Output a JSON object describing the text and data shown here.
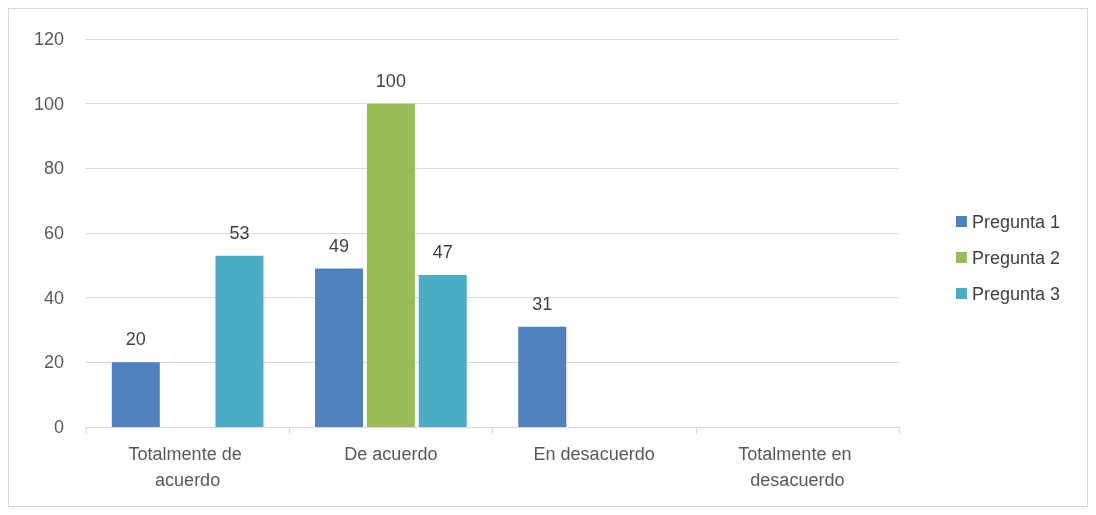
{
  "chart_data": {
    "type": "bar",
    "categories": [
      "Totalmente de acuerdo",
      "De acuerdo",
      "En desacuerdo",
      "Totalmente en desacuerdo"
    ],
    "series": [
      {
        "name": "Pregunta 1",
        "color": "#4f81bd",
        "values": [
          20,
          49,
          31,
          null
        ],
        "value_labels": [
          "20",
          "49",
          "31",
          null
        ]
      },
      {
        "name": "Pregunta 2",
        "color": "#9bbb59",
        "values": [
          null,
          100,
          null,
          null
        ],
        "value_labels": [
          null,
          "100",
          null,
          null
        ]
      },
      {
        "name": "Pregunta 3",
        "color": "#4bacc6",
        "values": [
          53,
          47,
          null,
          null
        ],
        "value_labels": [
          "53",
          "47",
          null,
          null
        ]
      }
    ],
    "ylim": [
      0,
      120
    ],
    "yticks": [
      0,
      20,
      40,
      60,
      80,
      100,
      120
    ],
    "grid": "y",
    "legend": "right"
  }
}
